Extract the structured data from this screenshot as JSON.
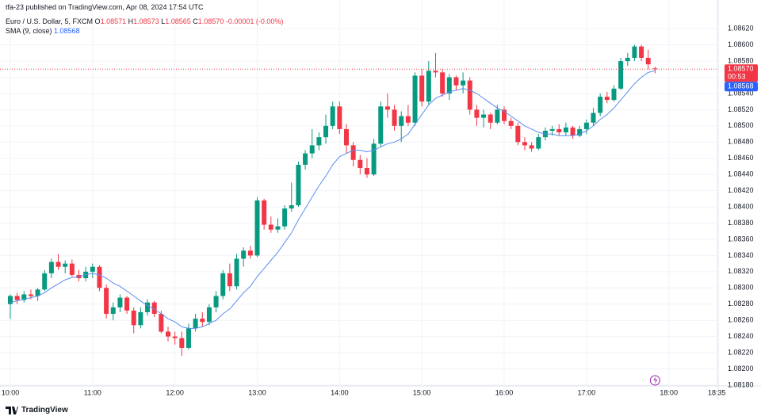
{
  "header": {
    "publisher": "tfa-23 published on TradingView.com, Apr 08, 2024 17:54 UTC",
    "symbol": "Euro / U.S. Dollar, 5, FXCM",
    "ohlc": [
      {
        "label": "O",
        "value": "1.08571"
      },
      {
        "label": "H",
        "value": "1.08573"
      },
      {
        "label": "L",
        "value": "1.08565"
      },
      {
        "label": "C",
        "value": "1.08570"
      }
    ],
    "change": "-0.00001 (-0.00%)"
  },
  "footer": {
    "brand": "TradingView"
  },
  "chart_data": {
    "type": "candlestick",
    "up_color": "#089981",
    "down_color": "#f23645",
    "x": [
      600,
      605,
      610,
      615,
      620,
      625,
      630,
      635,
      640,
      645,
      650,
      655,
      660,
      665,
      670,
      675,
      680,
      685,
      690,
      695,
      700,
      705,
      710,
      715,
      720,
      725,
      730,
      735,
      740,
      745,
      750,
      755,
      760,
      765,
      770,
      775,
      780,
      785,
      790,
      795,
      800,
      805,
      810,
      815,
      820,
      825,
      830,
      835,
      840,
      845,
      850,
      855,
      860,
      865,
      870,
      875,
      880,
      885,
      890,
      895,
      900,
      905,
      910,
      915,
      920,
      925,
      930,
      935,
      940,
      945,
      950,
      955,
      960,
      965,
      970,
      975,
      980,
      985,
      990,
      995,
      1000,
      1005,
      1010,
      1015,
      1020,
      1025,
      1030,
      1035,
      1040,
      1045,
      1050,
      1055,
      1060,
      1065,
      1070
    ],
    "open": [
      1.0828,
      1.0829,
      1.08285,
      1.08292,
      1.0829,
      1.08298,
      1.08318,
      1.08332,
      1.08326,
      1.0833,
      1.08316,
      1.08312,
      1.0832,
      1.08326,
      1.083,
      1.08268,
      1.08276,
      1.08288,
      1.08272,
      1.08254,
      1.0827,
      1.08282,
      1.08268,
      1.08246,
      1.0824,
      1.08238,
      1.08226,
      1.0825,
      1.08262,
      1.08258,
      1.08276,
      1.0829,
      1.08318,
      1.08302,
      1.08336,
      1.08346,
      1.0834,
      1.08408,
      1.08378,
      1.08372,
      1.08376,
      1.08398,
      1.08402,
      1.08452,
      1.08466,
      1.08476,
      1.08486,
      1.085,
      1.08524,
      1.08496,
      1.08476,
      1.08458,
      1.08448,
      1.0844,
      1.08478,
      1.08524,
      1.0852,
      1.085,
      1.08512,
      1.08504,
      1.08562,
      1.0853,
      1.08568,
      1.08566,
      1.0854,
      1.0856,
      1.0855,
      1.08556,
      1.0852,
      1.0851,
      1.08514,
      1.08504,
      1.0852,
      1.08506,
      1.085,
      1.0848,
      1.08476,
      1.08472,
      1.08486,
      1.08494,
      1.08496,
      1.08492,
      1.08498,
      1.08488,
      1.08496,
      1.08504,
      1.08516,
      1.08536,
      1.08532,
      1.08546,
      1.0858,
      1.08584,
      1.08598,
      1.08584,
      1.08571
    ],
    "high": [
      1.08292,
      1.08294,
      1.08296,
      1.08298,
      1.083,
      1.08322,
      1.08336,
      1.08342,
      1.08334,
      1.08335,
      1.08322,
      1.08326,
      1.0833,
      1.08328,
      1.08304,
      1.08282,
      1.08292,
      1.0829,
      1.08276,
      1.08276,
      1.08286,
      1.08284,
      1.08272,
      1.08252,
      1.08246,
      1.08246,
      1.08256,
      1.08268,
      1.0827,
      1.0828,
      1.08296,
      1.08322,
      1.0833,
      1.08342,
      1.0835,
      1.08352,
      1.08412,
      1.0841,
      1.08388,
      1.08386,
      1.08402,
      1.0843,
      1.08456,
      1.0847,
      1.08496,
      1.08492,
      1.08514,
      1.0853,
      1.0853,
      1.08502,
      1.0848,
      1.08464,
      1.0846,
      1.08484,
      1.0853,
      1.0854,
      1.08526,
      1.08518,
      1.08526,
      1.08566,
      1.0857,
      1.0858,
      1.0859,
      1.0857,
      1.08564,
      1.08562,
      1.08566,
      1.0856,
      1.08526,
      1.0852,
      1.08516,
      1.08526,
      1.08524,
      1.0851,
      1.08504,
      1.08486,
      1.0848,
      1.0849,
      1.08498,
      1.085,
      1.08502,
      1.08504,
      1.085,
      1.085,
      1.08508,
      1.08522,
      1.0854,
      1.08542,
      1.0855,
      1.08584,
      1.0859,
      1.086,
      1.086,
      1.08594,
      1.08573
    ],
    "low": [
      1.08262,
      1.0828,
      1.08282,
      1.08286,
      1.08284,
      1.08296,
      1.08312,
      1.08322,
      1.08318,
      1.08314,
      1.08308,
      1.08308,
      1.08312,
      1.08296,
      1.08262,
      1.0826,
      1.0827,
      1.08268,
      1.08244,
      1.0825,
      1.08266,
      1.08264,
      1.08244,
      1.08234,
      1.0823,
      1.08216,
      1.08224,
      1.08246,
      1.08252,
      1.08254,
      1.0827,
      1.08286,
      1.08296,
      1.08298,
      1.08326,
      1.08336,
      1.08338,
      1.08372,
      1.08368,
      1.08368,
      1.08372,
      1.08394,
      1.084,
      1.08446,
      1.0846,
      1.0847,
      1.08478,
      1.08496,
      1.0849,
      1.08466,
      1.0845,
      1.0844,
      1.08436,
      1.08438,
      1.08474,
      1.0851,
      1.08494,
      1.0848,
      1.085,
      1.085,
      1.08524,
      1.08526,
      1.0856,
      1.08536,
      1.08532,
      1.08544,
      1.0854,
      1.08514,
      1.085,
      1.08498,
      1.08496,
      1.08502,
      1.08502,
      1.08496,
      1.08476,
      1.0847,
      1.08468,
      1.0847,
      1.08482,
      1.08488,
      1.08488,
      1.08488,
      1.08484,
      1.08486,
      1.0849,
      1.085,
      1.08512,
      1.08528,
      1.0853,
      1.08544,
      1.08574,
      1.0858,
      1.0858,
      1.0857,
      1.08565
    ],
    "close": [
      1.0829,
      1.08285,
      1.08292,
      1.0829,
      1.08298,
      1.08318,
      1.08332,
      1.08326,
      1.0833,
      1.08316,
      1.08312,
      1.0832,
      1.08326,
      1.083,
      1.08268,
      1.08276,
      1.08288,
      1.08272,
      1.08254,
      1.0827,
      1.08282,
      1.08268,
      1.08246,
      1.0824,
      1.08238,
      1.08226,
      1.0825,
      1.08262,
      1.08258,
      1.08276,
      1.0829,
      1.08318,
      1.08302,
      1.08336,
      1.08346,
      1.0834,
      1.08408,
      1.08378,
      1.08372,
      1.08376,
      1.08398,
      1.08402,
      1.08452,
      1.08466,
      1.08476,
      1.08486,
      1.085,
      1.08524,
      1.08496,
      1.08476,
      1.08458,
      1.08448,
      1.0844,
      1.08478,
      1.08524,
      1.0852,
      1.085,
      1.08512,
      1.08504,
      1.08562,
      1.0853,
      1.08568,
      1.08566,
      1.0854,
      1.0856,
      1.0855,
      1.08556,
      1.0852,
      1.0851,
      1.08514,
      1.08504,
      1.0852,
      1.08506,
      1.085,
      1.0848,
      1.08476,
      1.08472,
      1.08486,
      1.08494,
      1.08496,
      1.08492,
      1.08498,
      1.08488,
      1.08496,
      1.08504,
      1.08516,
      1.08536,
      1.08532,
      1.08546,
      1.0858,
      1.08584,
      1.08598,
      1.08584,
      1.08576,
      1.0857
    ],
    "sma": {
      "name": "SMA (9, close)",
      "color": "#5b8def",
      "last_label": "1.08568",
      "values": [
        1.08282,
        1.08284,
        1.08286,
        1.08288,
        1.0829,
        1.08294,
        1.083,
        1.08305,
        1.0831,
        1.08313,
        1.08314,
        1.08316,
        1.08318,
        1.08316,
        1.08312,
        1.08306,
        1.08302,
        1.08296,
        1.0829,
        1.08284,
        1.08278,
        1.08274,
        1.08268,
        1.08262,
        1.08258,
        1.08252,
        1.0825,
        1.0825,
        1.08252,
        1.08256,
        1.0826,
        1.08268,
        1.08274,
        1.08284,
        1.08294,
        1.08302,
        1.08314,
        1.08324,
        1.08334,
        1.08344,
        1.08356,
        1.08368,
        1.08384,
        1.08398,
        1.08412,
        1.08426,
        1.08438,
        1.08452,
        1.08462,
        1.08466,
        1.0847,
        1.0847,
        1.08468,
        1.0847,
        1.08474,
        1.08478,
        1.0848,
        1.08484,
        1.0849,
        1.08502,
        1.08514,
        1.08526,
        1.08534,
        1.08538,
        1.08542,
        1.08544,
        1.08546,
        1.08544,
        1.0854,
        1.08534,
        1.08528,
        1.08522,
        1.08518,
        1.08512,
        1.08506,
        1.085,
        1.08496,
        1.08492,
        1.0849,
        1.0849,
        1.08488,
        1.08488,
        1.08488,
        1.0849,
        1.08494,
        1.085,
        1.08508,
        1.08514,
        1.08522,
        1.08532,
        1.08542,
        1.08552,
        1.0856,
        1.08566,
        1.08568
      ]
    },
    "last_price": {
      "label": "1.08570",
      "countdown": "00:53"
    },
    "xlim": [
      592.5,
      1116
    ],
    "ylim": [
      1.08179,
      1.08628
    ],
    "xticks": [
      {
        "value": 600,
        "label": "10:00"
      },
      {
        "value": 660,
        "label": "11:00"
      },
      {
        "value": 720,
        "label": "12:00"
      },
      {
        "value": 780,
        "label": "13:00"
      },
      {
        "value": 840,
        "label": "14:00"
      },
      {
        "value": 900,
        "label": "15:00"
      },
      {
        "value": 960,
        "label": "16:00"
      },
      {
        "value": 1020,
        "label": "17:00"
      },
      {
        "value": 1080,
        "label": "18:00"
      },
      {
        "value": 1115,
        "label": "18:35"
      }
    ],
    "yticks": [
      {
        "value": 1.0818,
        "label": "1.08180"
      },
      {
        "value": 1.082,
        "label": "1.08200"
      },
      {
        "value": 1.0822,
        "label": "1.08220"
      },
      {
        "value": 1.0824,
        "label": "1.08240"
      },
      {
        "value": 1.0826,
        "label": "1.08260"
      },
      {
        "value": 1.0828,
        "label": "1.08280"
      },
      {
        "value": 1.083,
        "label": "1.08300"
      },
      {
        "value": 1.0832,
        "label": "1.08320"
      },
      {
        "value": 1.0834,
        "label": "1.08340"
      },
      {
        "value": 1.0836,
        "label": "1.08360"
      },
      {
        "value": 1.0838,
        "label": "1.08380"
      },
      {
        "value": 1.084,
        "label": "1.08400"
      },
      {
        "value": 1.0842,
        "label": "1.08420"
      },
      {
        "value": 1.0844,
        "label": "1.08440"
      },
      {
        "value": 1.0846,
        "label": "1.08460"
      },
      {
        "value": 1.0848,
        "label": "1.08480"
      },
      {
        "value": 1.085,
        "label": "1.08500"
      },
      {
        "value": 1.0852,
        "label": "1.08520"
      },
      {
        "value": 1.0854,
        "label": "1.08540"
      },
      {
        "value": 1.0856,
        "label": "1.08560"
      },
      {
        "value": 1.0858,
        "label": "1.08580"
      },
      {
        "value": 1.086,
        "label": "1.08600"
      },
      {
        "value": 1.0862,
        "label": "1.08620"
      }
    ],
    "grid": true
  }
}
